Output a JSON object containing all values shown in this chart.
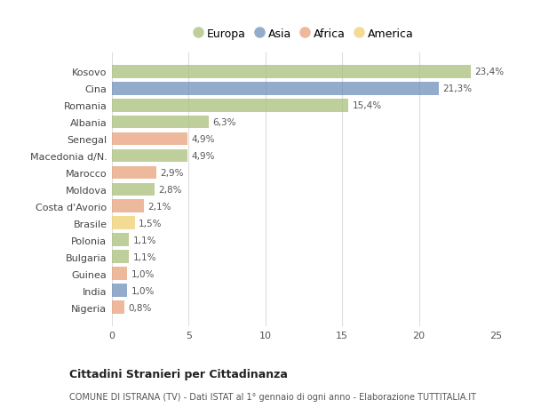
{
  "countries": [
    "Kosovo",
    "Cina",
    "Romania",
    "Albania",
    "Senegal",
    "Macedonia d/N.",
    "Marocco",
    "Moldova",
    "Costa d'Avorio",
    "Brasile",
    "Polonia",
    "Bulgaria",
    "Guinea",
    "India",
    "Nigeria"
  ],
  "values": [
    23.4,
    21.3,
    15.4,
    6.3,
    4.9,
    4.9,
    2.9,
    2.8,
    2.1,
    1.5,
    1.1,
    1.1,
    1.0,
    1.0,
    0.8
  ],
  "labels": [
    "23,4%",
    "21,3%",
    "15,4%",
    "6,3%",
    "4,9%",
    "4,9%",
    "2,9%",
    "2,8%",
    "2,1%",
    "1,5%",
    "1,1%",
    "1,1%",
    "1,0%",
    "1,0%",
    "0,8%"
  ],
  "continents": [
    "Europa",
    "Asia",
    "Europa",
    "Europa",
    "Africa",
    "Europa",
    "Africa",
    "Europa",
    "Africa",
    "America",
    "Europa",
    "Europa",
    "Africa",
    "Asia",
    "Africa"
  ],
  "colors": {
    "Europa": "#a8c07a",
    "Asia": "#7090bb",
    "Africa": "#e8a07a",
    "America": "#f0d070"
  },
  "title": "Cittadini Stranieri per Cittadinanza",
  "subtitle": "COMUNE DI ISTRANA (TV) - Dati ISTAT al 1° gennaio di ogni anno - Elaborazione TUTTITALIA.IT",
  "xlim": [
    0,
    25
  ],
  "xticks": [
    0,
    5,
    10,
    15,
    20,
    25
  ],
  "background_color": "#ffffff",
  "grid_color": "#dddddd",
  "bar_alpha": 0.75,
  "legend_order": [
    "Europa",
    "Asia",
    "Africa",
    "America"
  ]
}
